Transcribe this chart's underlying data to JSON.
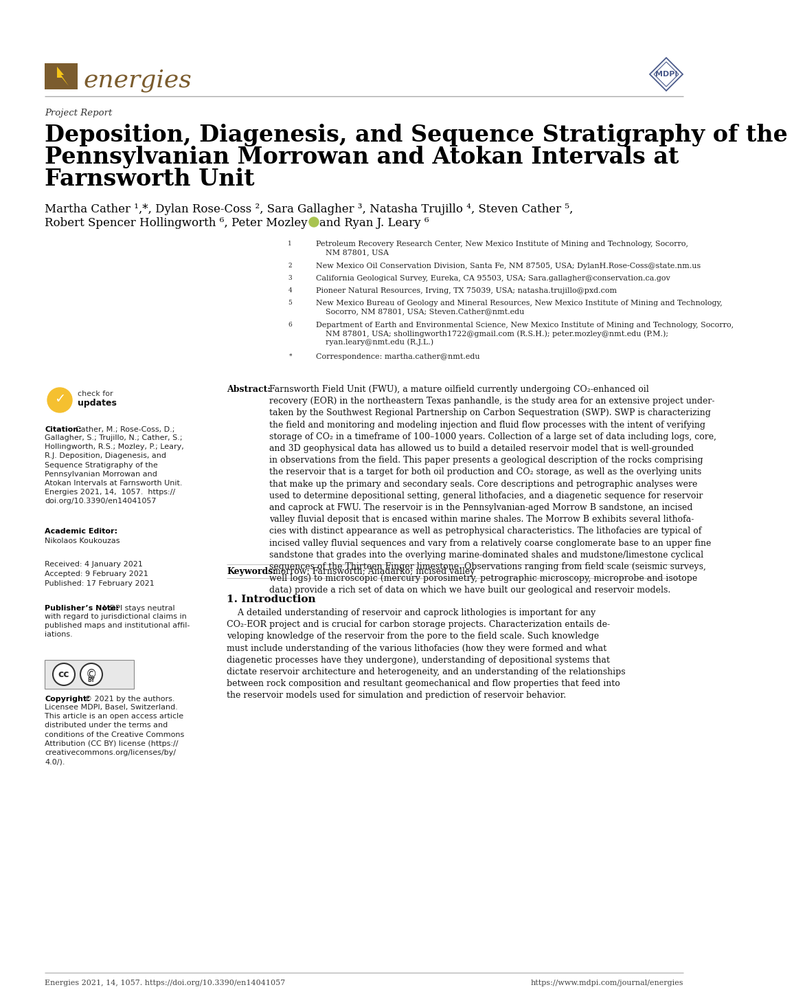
{
  "background_color": "#ffffff",
  "line_color": "#888888",
  "journal_name": "energies",
  "journal_color": "#7B5C2E",
  "logo_box_color": "#7B5C2E",
  "logo_bolt_color": "#F5C518",
  "mdpi_color": "#4a5a8a",
  "project_report_text": "Project Report",
  "title_line1": "Deposition, Diagenesis, and Sequence Stratigraphy of the",
  "title_line2": "Pennsylvanian Morrowan and Atokan Intervals at",
  "title_line3": "Farnsworth Unit",
  "title_fontsize": 24,
  "authors_line1": "Martha Cather ¹,*, Dylan Rose-Coss ², Sara Gallagher ³, Natasha Trujillo ⁴, Steven Cather ⁵,",
  "authors_line2": "Robert Spencer Hollingworth ⁶, Peter Mozley ⁶ and Ryan J. Leary ⁶",
  "authors_fontsize": 12,
  "aff1": "Petroleum Recovery Research Center, New Mexico Institute of Mining and Technology, Socorro,\n    NM 87801, USA",
  "aff2": "New Mexico Oil Conservation Division, Santa Fe, NM 87505, USA; DylanH.Rose-Coss@state.nm.us",
  "aff3": "California Geological Survey, Eureka, CA 95503, USA; Sara.gallagher@conservation.ca.gov",
  "aff4": "Pioneer Natural Resources, Irving, TX 75039, USA; natasha.trujillo@pxd.com",
  "aff5": "New Mexico Bureau of Geology and Mineral Resources, New Mexico Institute of Mining and Technology,\n    Socorro, NM 87801, USA; Steven.Cather@nmt.edu",
  "aff6": "Department of Earth and Environmental Science, New Mexico Institute of Mining and Technology, Socorro,\n    NM 87801, USA; shollingworth1722@gmail.com (R.S.H.); peter.mozley@nmt.edu (P.M.);\n    ryan.leary@nmt.edu (R.J.L.)",
  "aff_star": "Correspondence: martha.cather@nmt.edu",
  "aff_fontsize": 8.0,
  "citation_bold": "Citation:",
  "citation_body": "  Cather, M.; Rose-Coss, D.;\nGallagher, S.; Trujillo, N.; Cather, S.;\nHollingworth, R.S.; Mozley, P.; Leary,\nR.J. Deposition, Diagenesis, and\nSequence Stratigraphy of the\nPennsylvanian Morrowan and\nAtokan Intervals at Farnsworth Unit.\nEnergies 2021, 14, 1057.  https://\ndoi.org/10.3390/en14041057",
  "academic_editor_bold": "Academic Editor:",
  "academic_editor_name": "Nikolaos Koukouzas",
  "received": "Received: 4 January 2021",
  "accepted": "Accepted: 9 February 2021",
  "published": "Published: 17 February 2021",
  "pub_note_bold": "Publisher’s Note:",
  "pub_note_body": " MDPI stays neutral\nwith regard to jurisdictional claims in\npublished maps and institutional affil-\niations.",
  "copyright_bold": "Copyright:",
  "copyright_body": " © 2021 by the authors.\nLicensee MDPI, Basel, Switzerland.\nThis article is an open access article\ndistributed under the terms and\nconditions of the Creative Commons\nAttribution (CC BY) license (https://\ncreativecommons.org/licenses/by/\n4.0/).",
  "abstract_bold": "Abstract:",
  "abstract_body": " Farnsworth Field Unit (FWU), a mature oilfield currently undergoing CO₂-enhanced oil\nrecovery (EOR) in the northeastern Texas panhandle, is the study area for an extensive project under-\ntaken by the Southwest Regional Partnership on Carbon Sequestration (SWP). SWP is characterizing\nthe field and monitoring and modeling injection and fluid flow processes with the intent of verifying\nstorage of CO₂ in a timeframe of 100–1000 years. Collection of a large set of data including logs, core,\nand 3D geophysical data has allowed us to build a detailed reservoir model that is well-grounded\nin observations from the field. This paper presents a geological description of the rocks comprising\nthe reservoir that is a target for both oil production and CO₂ storage, as well as the overlying units\nthat make up the primary and secondary seals. Core descriptions and petrographic analyses were\nused to determine depositional setting, general lithofacies, and a diagenetic sequence for reservoir\nand caprock at FWU. The reservoir is in the Pennsylvanian-aged Morrow B sandstone, an incised\nvalley fluvial deposit that is encased within marine shales. The Morrow B exhibits several lithofa-\ncies with distinct appearance as well as petrophysical characteristics. The lithofacies are typical of\nincised valley fluvial sequences and vary from a relatively coarse conglomerate base to an upper fine\nsandstone that grades into the overlying marine-dominated shales and mudstone/limestone cyclical\nsequences of the Thirteen Finger limestone. Observations ranging from field scale (seismic surveys,\nwell logs) to microscopic (mercury porosimetry, petrographic microscopy, microprobe and isotope\ndata) provide a rich set of data on which we have built our geological and reservoir models.",
  "keywords_bold": "Keywords:",
  "keywords_body": " morrow; Farnsworth; Anadarko; incised valley",
  "intro_header": "1. Introduction",
  "intro_body": "    A detailed understanding of reservoir and caprock lithologies is important for any\nCO₂-EOR project and is crucial for carbon storage projects. Characterization entails de-\nveloping knowledge of the reservoir from the pore to the field scale. Such knowledge\nmust include understanding of the various lithofacies (how they were formed and what\ndiagenetic processes have they undergone), understanding of depositional systems that\ndictate reservoir architecture and heterogeneity, and an understanding of the relationships\nbetween rock composition and resultant geomechanical and flow properties that feed into\nthe reservoir models used for simulation and prediction of reservoir behavior.",
  "footer_left": "Energies 2021, 14, 1057. https://doi.org/10.3390/en14041057",
  "footer_right": "https://www.mdpi.com/journal/energies"
}
